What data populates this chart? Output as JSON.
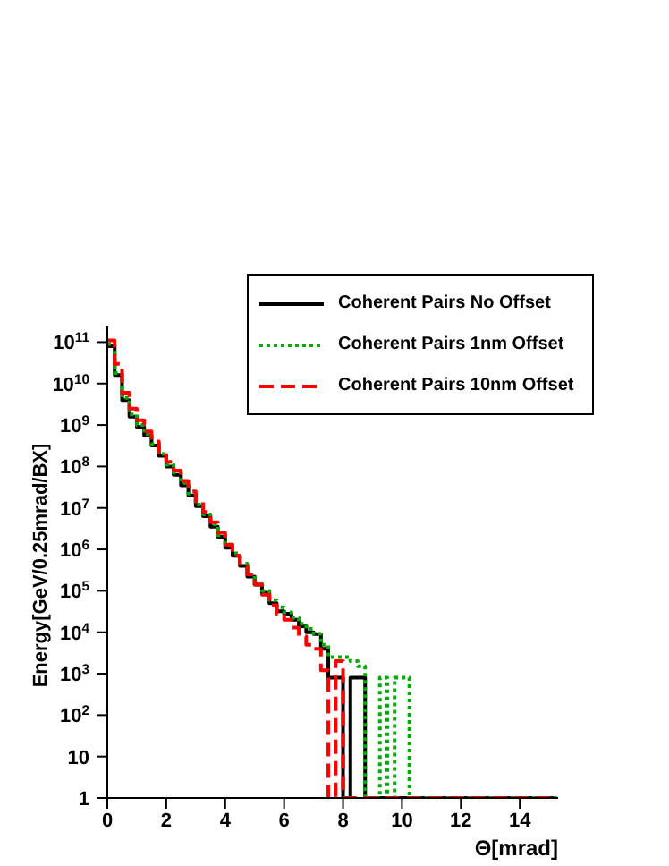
{
  "chart_data": {
    "type": "histogram",
    "xlabel": "Θ[mrad]",
    "ylabel": "Energy[GeV/0.25mrad/BX]",
    "bins": [
      0,
      0.25,
      0.5,
      0.75,
      1,
      1.25,
      1.5,
      1.75,
      2,
      2.25,
      2.5,
      2.75,
      3,
      3.25,
      3.5,
      3.75,
      4,
      4.25,
      4.5,
      4.75,
      5,
      5.25,
      5.5,
      5.75,
      6,
      6.25,
      6.5,
      6.75,
      7,
      7.25,
      7.5,
      7.75,
      8,
      8.25,
      8.5,
      8.75,
      9,
      9.25,
      9.5,
      9.75,
      10,
      10.25,
      10.5,
      10.75,
      11,
      11.25,
      11.5,
      11.75,
      12,
      12.25,
      12.5,
      12.75,
      13,
      13.25,
      13.5,
      13.75,
      14,
      14.25,
      14.5,
      14.75,
      15,
      15.25
    ],
    "series": [
      {
        "name": "Coherent Pairs No Offset",
        "color": "#000000",
        "line_style": "solid",
        "values": [
          80000000000.0,
          16000000000.0,
          4000000000.0,
          1600000000.0,
          900000000.0,
          560000000.0,
          320000000.0,
          180000000.0,
          100000000.0,
          63000000.0,
          35000000.0,
          20000000.0,
          11000000.0,
          6300000.0,
          3500000.0,
          2000000.0,
          1100000.0,
          700000.0,
          400000.0,
          220000.0,
          140000.0,
          90000.0,
          50000.0,
          32000.0,
          28000.0,
          20000.0,
          14000.0,
          10000.0,
          9000.0,
          4000.0,
          800,
          800,
          1,
          800,
          800,
          1,
          1,
          1,
          1,
          1,
          1,
          1,
          1,
          1,
          1,
          1,
          1,
          1,
          1,
          1,
          1,
          1,
          1,
          1,
          1,
          1,
          1,
          1,
          1,
          1,
          1
        ]
      },
      {
        "name": "Coherent Pairs 1nm Offset",
        "color": "#00aa00",
        "line_style": "dotted",
        "values": [
          90000000000.0,
          18000000000.0,
          4500000000.0,
          1800000000.0,
          1000000000.0,
          600000000.0,
          350000000.0,
          200000000.0,
          110000000.0,
          70000000.0,
          40000000.0,
          22000000.0,
          12000000.0,
          7000000.0,
          4000000.0,
          2200000.0,
          1300000.0,
          800000.0,
          450000.0,
          250000.0,
          150000.0,
          100000.0,
          60000.0,
          40000.0,
          30000.0,
          22000.0,
          16000.0,
          12000.0,
          9000.0,
          5000.0,
          2500.0,
          2500.0,
          2500.0,
          2000.0,
          1500.0,
          1,
          1,
          800,
          1,
          800,
          800,
          1,
          1,
          1,
          1,
          1,
          1,
          1,
          1,
          1,
          1,
          1,
          1,
          1,
          1,
          1,
          1,
          1,
          1,
          1,
          1
        ]
      },
      {
        "name": "Coherent Pairs 10nm Offset",
        "color": "#ff0000",
        "line_style": "dashed",
        "values": [
          110000000000.0,
          30000000000.0,
          6000000000.0,
          2500000000.0,
          1300000000.0,
          700000000.0,
          400000000.0,
          230000000.0,
          130000000.0,
          80000000.0,
          45000000.0,
          25000000.0,
          14000000.0,
          8000000.0,
          4500000.0,
          2500000.0,
          1300000.0,
          700000.0,
          400000.0,
          250000.0,
          140000.0,
          80000.0,
          45000.0,
          28000.0,
          20000.0,
          13000.0,
          8000.0,
          5000.0,
          4000.0,
          1200.0,
          1,
          2000.0,
          1,
          1,
          1,
          1,
          1,
          1,
          1,
          1,
          1,
          1,
          1,
          1,
          1,
          1,
          1,
          1,
          1,
          1,
          1,
          1,
          1,
          1,
          1,
          1,
          1,
          1,
          1,
          1,
          1
        ]
      }
    ],
    "xlim": [
      0,
      15.3
    ],
    "xticks": [
      0,
      2,
      4,
      6,
      8,
      10,
      12,
      14
    ],
    "ylim": [
      1,
      250000000000.0
    ],
    "log": "y",
    "yticks": [
      1,
      10,
      {
        "value": 100,
        "label": "10$^{2}$"
      },
      {
        "value": 1000,
        "label": "10$^{3}$"
      },
      {
        "value": 10000,
        "label": "10$^{4}$"
      },
      {
        "value": 100000,
        "label": "10$^{5}$"
      },
      {
        "value": 1000000,
        "label": "10$^{6}$"
      },
      {
        "value": 10000000,
        "label": "10$^{7}$"
      },
      {
        "value": 100000000,
        "label": "10$^{8}$"
      },
      {
        "value": 1000000000,
        "label": "10$^{9}$"
      },
      {
        "value": 10000000000,
        "label": "10$^{10}$"
      },
      {
        "value": 100000000000,
        "label": "10$^{11}$"
      }
    ],
    "legend": "top right"
  }
}
